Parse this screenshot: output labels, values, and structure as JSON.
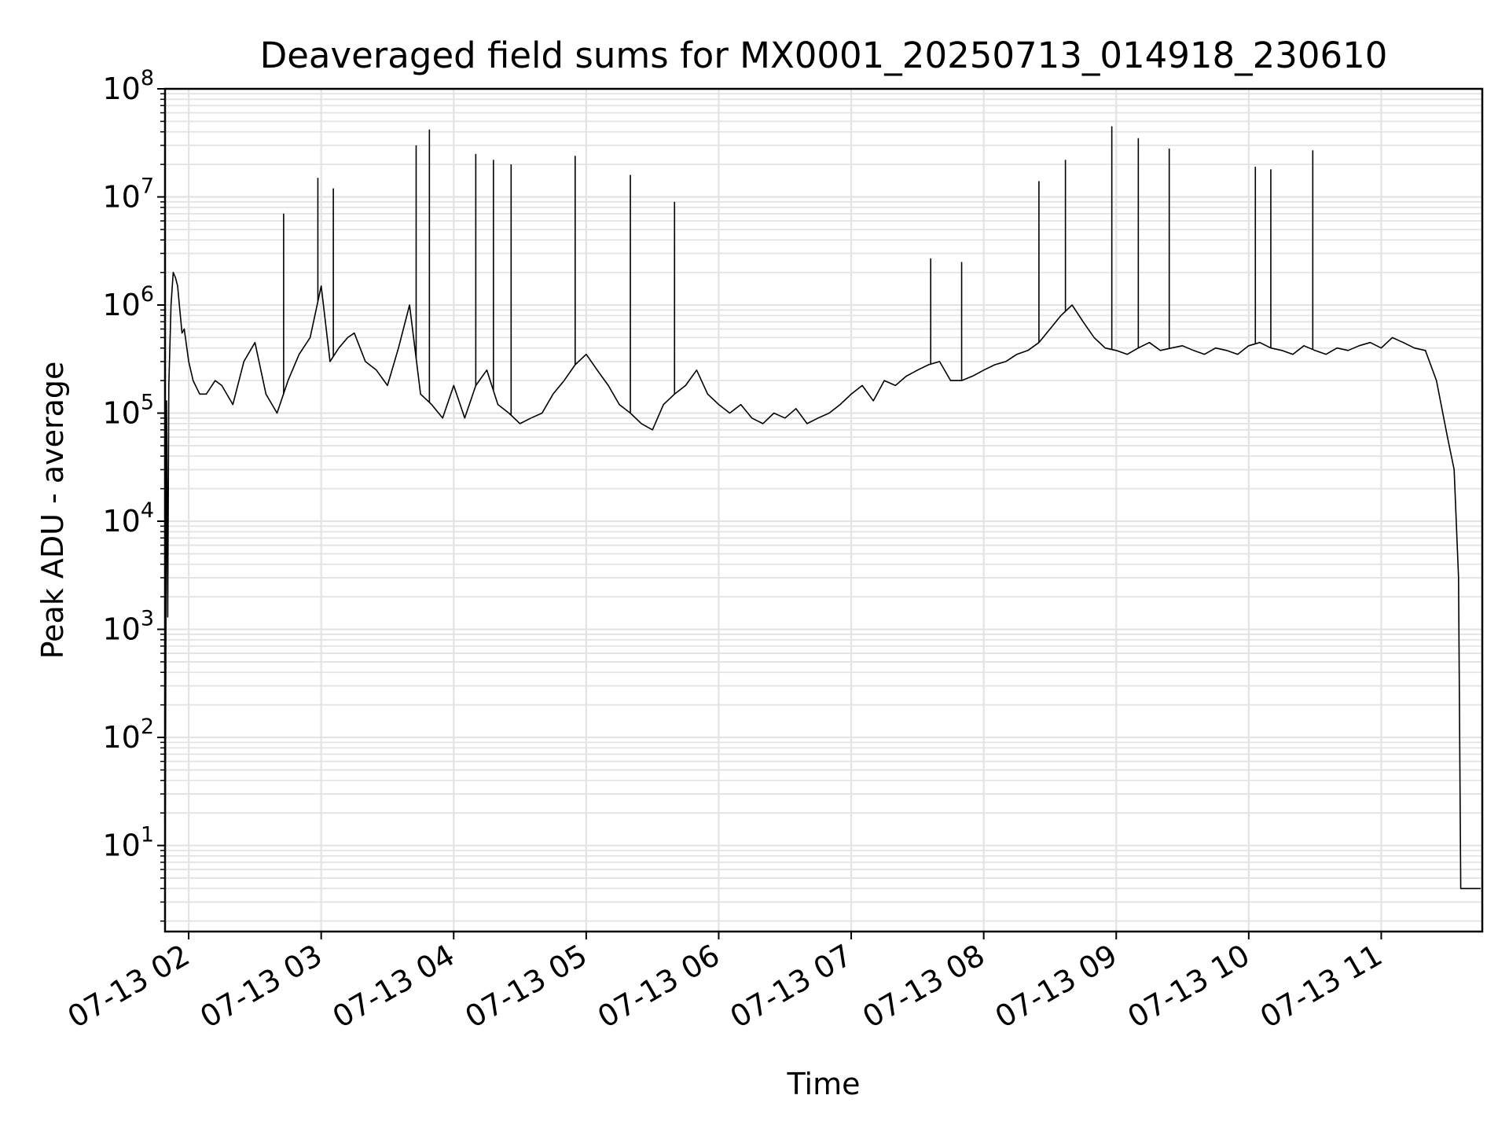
{
  "chart_data": {
    "type": "line",
    "title": "Deaveraged field sums for MX0001_20250713_014918_230610",
    "xlabel": "Time",
    "ylabel": "Peak ADU - average",
    "yscale": "log",
    "grid": true,
    "line_color": "#000000",
    "grid_color": "#e3e3e3",
    "x_axis_type": "time",
    "xlim": [
      "2025-07-13 01:49:18",
      "2025-07-13 11:45:45"
    ],
    "ylim": [
      1.6,
      100000000
    ],
    "xticks": [
      {
        "value": "2025-07-13 02:00:00",
        "label": "07-13 02"
      },
      {
        "value": "2025-07-13 03:00:00",
        "label": "07-13 03"
      },
      {
        "value": "2025-07-13 04:00:00",
        "label": "07-13 04"
      },
      {
        "value": "2025-07-13 05:00:00",
        "label": "07-13 05"
      },
      {
        "value": "2025-07-13 06:00:00",
        "label": "07-13 06"
      },
      {
        "value": "2025-07-13 07:00:00",
        "label": "07-13 07"
      },
      {
        "value": "2025-07-13 08:00:00",
        "label": "07-13 08"
      },
      {
        "value": "2025-07-13 09:00:00",
        "label": "07-13 09"
      },
      {
        "value": "2025-07-13 10:00:00",
        "label": "07-13 10"
      },
      {
        "value": "2025-07-13 11:00:00",
        "label": "07-13 11"
      }
    ],
    "yticks": [
      {
        "value": 10,
        "base": "10",
        "exp": "1"
      },
      {
        "value": 100,
        "base": "10",
        "exp": "2"
      },
      {
        "value": 1000,
        "base": "10",
        "exp": "3"
      },
      {
        "value": 10000,
        "base": "10",
        "exp": "4"
      },
      {
        "value": 100000,
        "base": "10",
        "exp": "5"
      },
      {
        "value": 1000000,
        "base": "10",
        "exp": "6"
      },
      {
        "value": 10000000,
        "base": "10",
        "exp": "7"
      },
      {
        "value": 100000000,
        "base": "10",
        "exp": "8"
      }
    ],
    "series": [
      {
        "x": [
          "2025-07-13 01:49:18",
          "2025-07-13 01:50:00",
          "2025-07-13 01:50:30",
          "2025-07-13 01:51:00",
          "2025-07-13 01:52:00",
          "2025-07-13 01:53:00",
          "2025-07-13 01:54:00",
          "2025-07-13 01:55:00",
          "2025-07-13 01:56:00",
          "2025-07-13 01:57:00",
          "2025-07-13 01:58:00",
          "2025-07-13 02:00:00",
          "2025-07-13 02:02:00",
          "2025-07-13 02:05:00",
          "2025-07-13 02:08:00",
          "2025-07-13 02:12:00",
          "2025-07-13 02:15:00",
          "2025-07-13 02:20:00",
          "2025-07-13 02:25:00",
          "2025-07-13 02:30:00",
          "2025-07-13 02:35:00",
          "2025-07-13 02:40:00",
          "2025-07-13 02:45:00",
          "2025-07-13 02:50:00",
          "2025-07-13 02:55:00",
          "2025-07-13 03:00:00",
          "2025-07-13 03:04:00",
          "2025-07-13 03:08:00",
          "2025-07-13 03:12:00",
          "2025-07-13 03:15:00",
          "2025-07-13 03:20:00",
          "2025-07-13 03:25:00",
          "2025-07-13 03:30:00",
          "2025-07-13 03:35:00",
          "2025-07-13 03:40:00",
          "2025-07-13 03:45:00",
          "2025-07-13 03:50:00",
          "2025-07-13 03:55:00",
          "2025-07-13 04:00:00",
          "2025-07-13 04:05:00",
          "2025-07-13 04:10:00",
          "2025-07-13 04:15:00",
          "2025-07-13 04:20:00",
          "2025-07-13 04:25:00",
          "2025-07-13 04:30:00",
          "2025-07-13 04:35:00",
          "2025-07-13 04:40:00",
          "2025-07-13 04:45:00",
          "2025-07-13 04:50:00",
          "2025-07-13 04:55:00",
          "2025-07-13 05:00:00",
          "2025-07-13 05:05:00",
          "2025-07-13 05:10:00",
          "2025-07-13 05:15:00",
          "2025-07-13 05:20:00",
          "2025-07-13 05:25:00",
          "2025-07-13 05:30:00",
          "2025-07-13 05:35:00",
          "2025-07-13 05:40:00",
          "2025-07-13 05:45:00",
          "2025-07-13 05:50:00",
          "2025-07-13 05:55:00",
          "2025-07-13 06:00:00",
          "2025-07-13 06:05:00",
          "2025-07-13 06:10:00",
          "2025-07-13 06:15:00",
          "2025-07-13 06:20:00",
          "2025-07-13 06:25:00",
          "2025-07-13 06:30:00",
          "2025-07-13 06:35:00",
          "2025-07-13 06:40:00",
          "2025-07-13 06:45:00",
          "2025-07-13 06:50:00",
          "2025-07-13 06:55:00",
          "2025-07-13 07:00:00",
          "2025-07-13 07:05:00",
          "2025-07-13 07:10:00",
          "2025-07-13 07:15:00",
          "2025-07-13 07:20:00",
          "2025-07-13 07:25:00",
          "2025-07-13 07:30:00",
          "2025-07-13 07:35:00",
          "2025-07-13 07:40:00",
          "2025-07-13 07:45:00",
          "2025-07-13 07:50:00",
          "2025-07-13 07:55:00",
          "2025-07-13 08:00:00",
          "2025-07-13 08:05:00",
          "2025-07-13 08:10:00",
          "2025-07-13 08:15:00",
          "2025-07-13 08:20:00",
          "2025-07-13 08:25:00",
          "2025-07-13 08:30:00",
          "2025-07-13 08:35:00",
          "2025-07-13 08:40:00",
          "2025-07-13 08:45:00",
          "2025-07-13 08:50:00",
          "2025-07-13 08:55:00",
          "2025-07-13 09:00:00",
          "2025-07-13 09:05:00",
          "2025-07-13 09:10:00",
          "2025-07-13 09:15:00",
          "2025-07-13 09:20:00",
          "2025-07-13 09:25:00",
          "2025-07-13 09:30:00",
          "2025-07-13 09:35:00",
          "2025-07-13 09:40:00",
          "2025-07-13 09:45:00",
          "2025-07-13 09:50:00",
          "2025-07-13 09:55:00",
          "2025-07-13 10:00:00",
          "2025-07-13 10:05:00",
          "2025-07-13 10:10:00",
          "2025-07-13 10:15:00",
          "2025-07-13 10:20:00",
          "2025-07-13 10:25:00",
          "2025-07-13 10:30:00",
          "2025-07-13 10:35:00",
          "2025-07-13 10:40:00",
          "2025-07-13 10:45:00",
          "2025-07-13 10:50:00",
          "2025-07-13 10:55:00",
          "2025-07-13 11:00:00",
          "2025-07-13 11:05:00",
          "2025-07-13 11:10:00",
          "2025-07-13 11:15:00",
          "2025-07-13 11:20:00",
          "2025-07-13 11:25:00",
          "2025-07-13 11:30:00",
          "2025-07-13 11:33:00",
          "2025-07-13 11:35:00",
          "2025-07-13 11:36:00",
          "2025-07-13 11:37:00",
          "2025-07-13 11:38:00",
          "2025-07-13 11:40:00",
          "2025-07-13 11:45:00"
        ],
        "y": [
          2,
          130000,
          1300,
          180000,
          1000000,
          2000000,
          1800000,
          1500000,
          900000,
          550000,
          600000,
          300000,
          200000,
          150000,
          150000,
          200000,
          180000,
          120000,
          300000,
          450000,
          150000,
          100000,
          200000,
          350000,
          500000,
          1500000,
          300000,
          400000,
          500000,
          550000,
          300000,
          250000,
          180000,
          400000,
          1000000,
          150000,
          120000,
          90000,
          180000,
          90000,
          180000,
          250000,
          120000,
          100000,
          80000,
          90000,
          100000,
          150000,
          200000,
          280000,
          350000,
          250000,
          180000,
          120000,
          100000,
          80000,
          70000,
          120000,
          150000,
          180000,
          250000,
          150000,
          120000,
          100000,
          120000,
          90000,
          80000,
          100000,
          90000,
          110000,
          80000,
          90000,
          100000,
          120000,
          150000,
          180000,
          130000,
          200000,
          180000,
          220000,
          250000,
          280000,
          300000,
          200000,
          200000,
          220000,
          250000,
          280000,
          300000,
          350000,
          380000,
          450000,
          600000,
          800000,
          1000000,
          700000,
          500000,
          400000,
          380000,
          350000,
          400000,
          450000,
          380000,
          400000,
          420000,
          380000,
          350000,
          400000,
          380000,
          350000,
          420000,
          450000,
          400000,
          380000,
          350000,
          420000,
          380000,
          350000,
          400000,
          380000,
          420000,
          450000,
          400000,
          500000,
          450000,
          400000,
          380000,
          200000,
          60000,
          30000,
          3000,
          4,
          4,
          4,
          4,
          4
        ],
        "spikes": [
          {
            "x": "2025-07-13 02:43:00",
            "y": 7000000
          },
          {
            "x": "2025-07-13 02:58:30",
            "y": 15000000
          },
          {
            "x": "2025-07-13 03:05:30",
            "y": 12000000
          },
          {
            "x": "2025-07-13 03:43:00",
            "y": 30000000
          },
          {
            "x": "2025-07-13 03:49:00",
            "y": 42000000
          },
          {
            "x": "2025-07-13 04:10:00",
            "y": 25000000
          },
          {
            "x": "2025-07-13 04:18:00",
            "y": 22000000
          },
          {
            "x": "2025-07-13 04:26:00",
            "y": 20000000
          },
          {
            "x": "2025-07-13 04:55:00",
            "y": 24000000
          },
          {
            "x": "2025-07-13 05:20:00",
            "y": 16000000
          },
          {
            "x": "2025-07-13 05:40:00",
            "y": 9000000
          },
          {
            "x": "2025-07-13 08:25:00",
            "y": 14000000
          },
          {
            "x": "2025-07-13 08:37:00",
            "y": 22000000
          },
          {
            "x": "2025-07-13 08:58:00",
            "y": 45000000
          },
          {
            "x": "2025-07-13 09:10:00",
            "y": 35000000
          },
          {
            "x": "2025-07-13 09:24:00",
            "y": 28000000
          },
          {
            "x": "2025-07-13 10:03:00",
            "y": 19000000
          },
          {
            "x": "2025-07-13 10:10:00",
            "y": 18000000
          },
          {
            "x": "2025-07-13 10:29:00",
            "y": 27000000
          },
          {
            "x": "2025-07-13 07:36:00",
            "y": 2700000
          },
          {
            "x": "2025-07-13 07:50:00",
            "y": 2500000
          }
        ]
      }
    ]
  }
}
